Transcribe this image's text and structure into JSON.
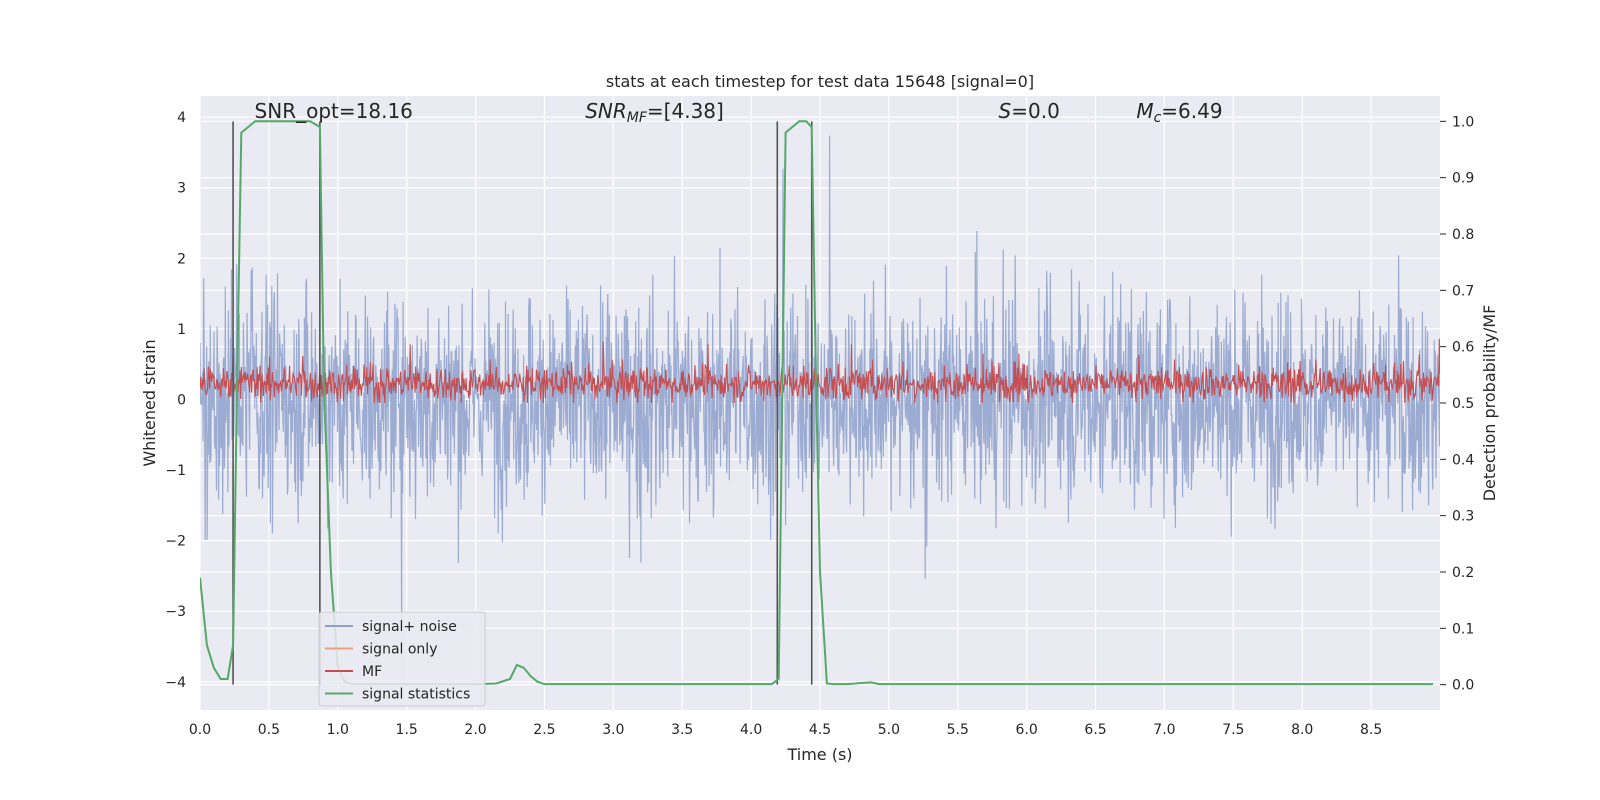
{
  "chart_data": {
    "type": "line",
    "title": "stats at each timestep for test data 15648 [signal=0]",
    "xlabel": "Time (s)",
    "ylabel": "Whitened strain",
    "y2label": "Detection probability/MF",
    "xlim": [
      0.0,
      9.0
    ],
    "ylim": [
      -4.4,
      4.3
    ],
    "y2lim": [
      -0.045,
      1.045
    ],
    "xticks": [
      "0.0",
      "0.5",
      "1.0",
      "1.5",
      "2.0",
      "2.5",
      "3.0",
      "3.5",
      "4.0",
      "4.5",
      "5.0",
      "5.5",
      "6.0",
      "6.5",
      "7.0",
      "7.5",
      "8.0",
      "8.5"
    ],
    "xtick_values": [
      0.0,
      0.5,
      1.0,
      1.5,
      2.0,
      2.5,
      3.0,
      3.5,
      4.0,
      4.5,
      5.0,
      5.5,
      6.0,
      6.5,
      7.0,
      7.5,
      8.0,
      8.5
    ],
    "yticks": [
      "4",
      "3",
      "2",
      "1",
      "0",
      "−1",
      "−2",
      "−3",
      "−4"
    ],
    "ytick_values": [
      4,
      3,
      2,
      1,
      0,
      -1,
      -2,
      -3,
      -4
    ],
    "y2ticks": [
      "1.0",
      "0.9",
      "0.8",
      "0.7",
      "0.6",
      "0.5",
      "0.4",
      "0.3",
      "0.2",
      "0.1",
      "0.0"
    ],
    "y2tick_values": [
      1.0,
      0.9,
      0.8,
      0.7,
      0.6,
      0.5,
      0.4,
      0.3,
      0.2,
      0.1,
      0.0
    ],
    "annotations": [
      {
        "id": "snr-opt",
        "text": "SNR_opt=18.16",
        "x": 0.2,
        "y": 4.0
      },
      {
        "id": "snr-mf",
        "text": "SNR_MF=[4.38]",
        "x": 2.6,
        "y": 4.0
      },
      {
        "id": "s-val",
        "text": "S=0.0",
        "x": 5.6,
        "y": 4.0
      },
      {
        "id": "mc-val",
        "text": "M_c=6.49",
        "x": 6.6,
        "y": 4.0
      }
    ],
    "legend": {
      "placement": "lower-left",
      "entries": [
        {
          "name": "signal+ noise",
          "color": "#8da0cb"
        },
        {
          "name": "signal only",
          "color": "#e8a27f"
        },
        {
          "name": "MF",
          "color": "#c44e52"
        },
        {
          "name": "signal statistics",
          "color": "#55a868"
        }
      ]
    },
    "vertical_lines": [
      0.24,
      0.87,
      4.19,
      4.44
    ],
    "series": [
      {
        "name": "signal+ noise",
        "axis": "left",
        "style": "noise band",
        "approx_range": [
          -4.0,
          3.95
        ]
      },
      {
        "name": "MF",
        "axis": "right",
        "style": "noise band",
        "approx_range": [
          0.5,
          0.63
        ]
      },
      {
        "name": "signal statistics",
        "axis": "right",
        "x": [
          0.0,
          0.05,
          0.1,
          0.15,
          0.2,
          0.24,
          0.27,
          0.3,
          0.35,
          0.4,
          0.5,
          0.6,
          0.7,
          0.8,
          0.87,
          0.9,
          0.95,
          1.0,
          1.05,
          1.1,
          1.2,
          1.5,
          2.0,
          2.15,
          2.25,
          2.3,
          2.35,
          2.4,
          2.45,
          2.5,
          3.0,
          3.5,
          4.0,
          4.15,
          4.2,
          4.25,
          4.3,
          4.35,
          4.4,
          4.44,
          4.47,
          4.5,
          4.55,
          4.6,
          4.7,
          4.8,
          4.87,
          4.93,
          5.0,
          6.0,
          7.0,
          8.0,
          8.95
        ],
        "values": [
          0.19,
          0.07,
          0.03,
          0.01,
          0.01,
          0.07,
          0.55,
          0.98,
          0.99,
          1.0,
          1.0,
          1.0,
          1.0,
          1.0,
          0.99,
          0.52,
          0.2,
          0.03,
          0.005,
          0.001,
          0.001,
          0.001,
          0.001,
          0.002,
          0.01,
          0.035,
          0.03,
          0.015,
          0.005,
          0.001,
          0.001,
          0.001,
          0.001,
          0.001,
          0.01,
          0.98,
          0.99,
          1.0,
          1.0,
          0.99,
          0.55,
          0.2,
          0.002,
          0.001,
          0.001,
          0.003,
          0.004,
          0.001,
          0.001,
          0.001,
          0.001,
          0.001,
          0.001
        ]
      }
    ]
  }
}
